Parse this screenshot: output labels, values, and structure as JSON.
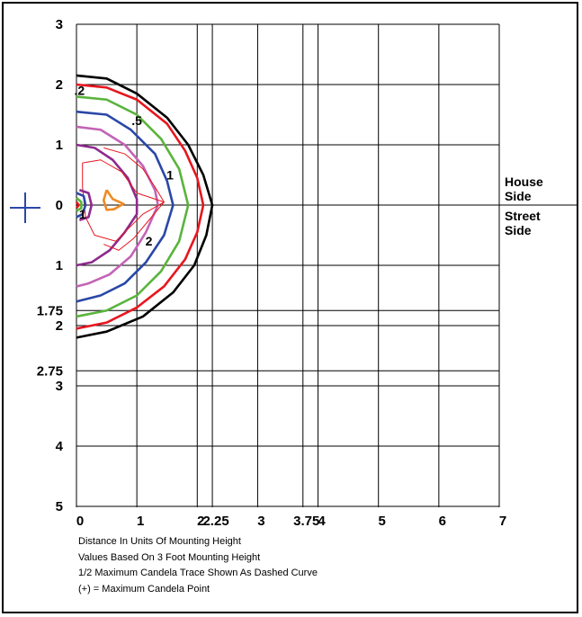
{
  "chart_data": {
    "type": "contour",
    "x_ticks": [
      "0",
      "1",
      "2",
      "2.25",
      "3",
      "3.75",
      "4",
      "5",
      "6",
      "7"
    ],
    "x_tick_values": [
      0,
      1,
      2,
      2.25,
      3,
      3.75,
      4,
      5,
      6,
      7
    ],
    "y_ticks_top": [
      "3",
      "2",
      "1",
      "0"
    ],
    "y_ticks_top_values": [
      3,
      2,
      1,
      0
    ],
    "y_ticks_bottom": [
      "1",
      "1.75",
      "2",
      "2.75",
      "3",
      "4",
      "5"
    ],
    "y_ticks_bottom_values": [
      1,
      1.75,
      2,
      2.75,
      3,
      4,
      5
    ],
    "xlim": [
      0,
      7
    ],
    "ylim": [
      -5,
      3
    ],
    "grid": true,
    "side_labels": {
      "top": "House\nSide",
      "bottom": "Street\nSide"
    },
    "contour_labels": [
      {
        "text": ".2",
        "x": 0.05,
        "y": 1.9
      },
      {
        "text": ".5",
        "x": 1.0,
        "y": 1.4
      },
      {
        "text": "1",
        "x": 1.55,
        "y": 0.5
      },
      {
        "text": "2",
        "x": 1.2,
        "y": -0.6
      },
      {
        "text": "1",
        "x": 0.1,
        "y": -0.15
      }
    ],
    "series": [
      {
        "color": "#000000",
        "points": [
          [
            0,
            2.15
          ],
          [
            0.5,
            2.1
          ],
          [
            1,
            1.85
          ],
          [
            1.5,
            1.45
          ],
          [
            1.85,
            1.0
          ],
          [
            2.1,
            0.5
          ],
          [
            2.25,
            0
          ],
          [
            2.15,
            -0.5
          ],
          [
            1.95,
            -1.0
          ],
          [
            1.6,
            -1.45
          ],
          [
            1.1,
            -1.85
          ],
          [
            0.5,
            -2.1
          ],
          [
            0,
            -2.2
          ]
        ]
      },
      {
        "color": "#e8151e",
        "points": [
          [
            0,
            2.0
          ],
          [
            0.5,
            1.95
          ],
          [
            1,
            1.75
          ],
          [
            1.5,
            1.35
          ],
          [
            1.8,
            0.9
          ],
          [
            2.0,
            0.45
          ],
          [
            2.1,
            0
          ],
          [
            2.0,
            -0.45
          ],
          [
            1.8,
            -0.9
          ],
          [
            1.45,
            -1.35
          ],
          [
            1.0,
            -1.7
          ],
          [
            0.5,
            -1.95
          ],
          [
            0,
            -2.05
          ]
        ]
      },
      {
        "color": "#5ab43b",
        "points": [
          [
            0,
            1.8
          ],
          [
            0.5,
            1.75
          ],
          [
            1,
            1.5
          ],
          [
            1.4,
            1.1
          ],
          [
            1.7,
            0.6
          ],
          [
            1.85,
            0
          ],
          [
            1.7,
            -0.6
          ],
          [
            1.4,
            -1.1
          ],
          [
            1.0,
            -1.5
          ],
          [
            0.5,
            -1.75
          ],
          [
            0,
            -1.85
          ]
        ]
      },
      {
        "color": "#2a47a8",
        "points": [
          [
            0,
            1.55
          ],
          [
            0.5,
            1.5
          ],
          [
            0.9,
            1.25
          ],
          [
            1.3,
            0.85
          ],
          [
            1.5,
            0.4
          ],
          [
            1.6,
            0
          ],
          [
            1.45,
            -0.5
          ],
          [
            1.15,
            -0.95
          ],
          [
            0.8,
            -1.3
          ],
          [
            0.4,
            -1.5
          ],
          [
            0,
            -1.6
          ]
        ]
      },
      {
        "color": "#c363b6",
        "points": [
          [
            0,
            1.3
          ],
          [
            0.4,
            1.25
          ],
          [
            0.8,
            1.0
          ],
          [
            1.1,
            0.65
          ],
          [
            1.3,
            0.25
          ],
          [
            1.35,
            0
          ],
          [
            1.15,
            -0.45
          ],
          [
            0.9,
            -0.85
          ],
          [
            0.55,
            -1.15
          ],
          [
            0.2,
            -1.3
          ],
          [
            0,
            -1.35
          ]
        ]
      },
      {
        "color": "#8e2a8e",
        "points": [
          [
            0,
            1.0
          ],
          [
            0.3,
            0.95
          ],
          [
            0.6,
            0.75
          ],
          [
            0.85,
            0.45
          ],
          [
            1.0,
            0.1
          ],
          [
            1.0,
            -0.15
          ],
          [
            0.8,
            -0.45
          ],
          [
            0.55,
            -0.75
          ],
          [
            0.25,
            -0.95
          ],
          [
            0,
            -1.0
          ]
        ]
      },
      {
        "color": "#e8151e",
        "thin": true,
        "points": [
          [
            0.1,
            0.7
          ],
          [
            0.4,
            0.75
          ],
          [
            0.75,
            0.55
          ],
          [
            1.0,
            0.2
          ],
          [
            1.45,
            0.05
          ],
          [
            1.1,
            -0.15
          ],
          [
            0.85,
            -0.4
          ],
          [
            0.65,
            -0.6
          ],
          [
            0.3,
            -0.5
          ],
          [
            0.15,
            -0.2
          ],
          [
            0.1,
            0.3
          ],
          [
            0.1,
            0.7
          ]
        ]
      },
      {
        "color": "#e8151e",
        "thin": true,
        "points": [
          [
            0.45,
            0.95
          ],
          [
            0.8,
            0.85
          ],
          [
            1.1,
            0.6
          ],
          [
            1.3,
            0.3
          ],
          [
            1.45,
            0.05
          ],
          [
            1.2,
            -0.25
          ],
          [
            0.95,
            -0.55
          ],
          [
            0.7,
            -0.75
          ],
          [
            0.45,
            -0.65
          ]
        ]
      },
      {
        "color": "#8e2a8e",
        "points": [
          [
            0.05,
            0.25
          ],
          [
            0.2,
            0.2
          ],
          [
            0.25,
            0
          ],
          [
            0.2,
            -0.2
          ],
          [
            0.05,
            -0.25
          ]
        ]
      },
      {
        "color": "#2a47a8",
        "points": [
          [
            0.0,
            0.2
          ],
          [
            0.12,
            0.15
          ],
          [
            0.15,
            0
          ],
          [
            0.1,
            -0.15
          ],
          [
            0,
            -0.2
          ]
        ]
      },
      {
        "color": "#5ab43b",
        "points": [
          [
            0,
            0.12
          ],
          [
            0.08,
            0.05
          ],
          [
            0.08,
            -0.05
          ],
          [
            0,
            -0.1
          ]
        ]
      },
      {
        "color": "#e8151e",
        "points": [
          [
            0,
            0.05
          ],
          [
            0.04,
            0
          ],
          [
            0,
            -0.05
          ]
        ]
      },
      {
        "color": "#f08a24",
        "points": [
          [
            0.5,
            0.25
          ],
          [
            0.6,
            0.1
          ],
          [
            0.78,
            0.02
          ],
          [
            0.62,
            -0.07
          ],
          [
            0.5,
            -0.08
          ],
          [
            0.45,
            0.08
          ],
          [
            0.5,
            0.25
          ]
        ]
      }
    ],
    "max_marker": {
      "x": -0.8,
      "y": 0,
      "color": "#2a47a8"
    }
  },
  "notes": [
    "Distance In Units Of Mounting Height",
    "Values Based On 3 Foot Mounting Height",
    "1/2 Maximum Candela Trace Shown As Dashed Curve",
    "(+) = Maximum Candela Point"
  ]
}
